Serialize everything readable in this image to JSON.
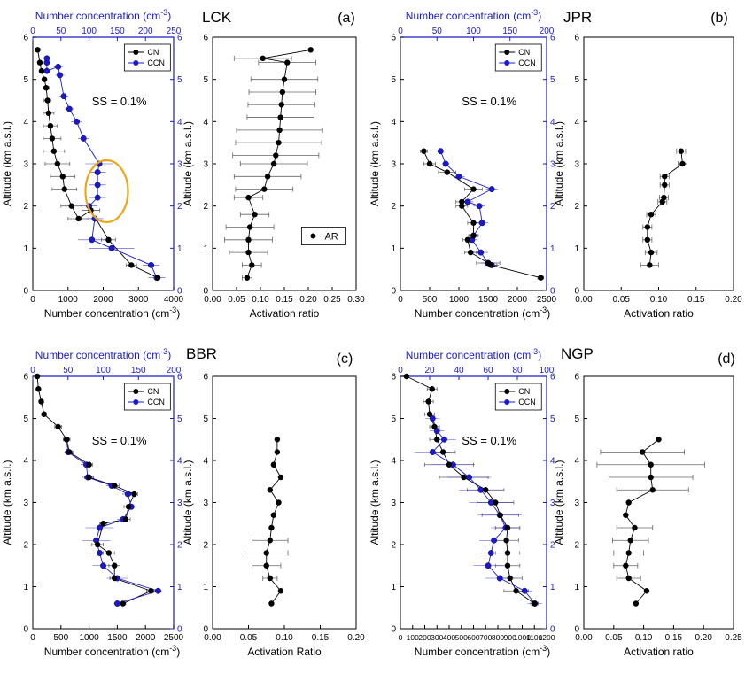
{
  "colors": {
    "cn": "#000000",
    "ccn": "#1a1acc",
    "axis_top": "#1a1acc",
    "ellipse": "#e8a817",
    "errbar": "#888888"
  },
  "common": {
    "ylabel": "Altitude (km a.s.l.)",
    "top_xlabel": "Number concentration (cm",
    "top_xlabel_sup": "-3",
    "top_xlabel_end": ")",
    "bottom_xlabel": "Number concentration (cm",
    "bottom_xlabel_sup": "-3",
    "bottom_xlabel_end": ")",
    "ss_text": "SS = 0.1%",
    "legend_cn": "CN",
    "legend_ccn": "CCN"
  },
  "chart_data": [
    {
      "panel": "(a)",
      "site": "LCK",
      "type": "scatter",
      "xlim": [
        0,
        4000
      ],
      "xticks": [
        "0",
        "1000",
        "2000",
        "3000",
        "4000"
      ],
      "top_xlim": [
        0,
        250
      ],
      "top_xticks": [
        "0",
        "50",
        "100",
        "150",
        "200",
        "250"
      ],
      "ylim": [
        0,
        6
      ],
      "yticks": [
        "0",
        "1",
        "2",
        "3",
        "4",
        "5",
        "6"
      ],
      "cn": [
        [
          3550,
          0.3
        ],
        [
          2800,
          0.6
        ],
        [
          2150,
          1.2
        ],
        [
          1650,
          1.9
        ],
        [
          1300,
          1.7
        ],
        [
          1100,
          2.0
        ],
        [
          900,
          2.4
        ],
        [
          850,
          2.7
        ],
        [
          700,
          3.0
        ],
        [
          600,
          3.3
        ],
        [
          550,
          3.6
        ],
        [
          500,
          3.9
        ],
        [
          450,
          4.2
        ],
        [
          420,
          4.5
        ],
        [
          380,
          4.8
        ],
        [
          330,
          5.0
        ],
        [
          250,
          5.2
        ],
        [
          200,
          5.4
        ],
        [
          140,
          5.7
        ]
      ],
      "cn_err": [
        50,
        150,
        200,
        250,
        300,
        300,
        350,
        350,
        350,
        300,
        250,
        200,
        150,
        100,
        80,
        60,
        50,
        40,
        30
      ],
      "ccn": [
        [
          220,
          0.3
        ],
        [
          210,
          0.6
        ],
        [
          140,
          1.0
        ],
        [
          105,
          1.2
        ],
        [
          110,
          1.7
        ],
        [
          100,
          2.0
        ],
        [
          115,
          2.2
        ],
        [
          115,
          2.5
        ],
        [
          115,
          2.8
        ],
        [
          118,
          3.0
        ],
        [
          90,
          3.6
        ],
        [
          78,
          4.0
        ],
        [
          65,
          4.3
        ],
        [
          55,
          4.6
        ],
        [
          48,
          5.1
        ],
        [
          45,
          5.3
        ],
        [
          25,
          5.2
        ],
        [
          25,
          5.4
        ],
        [
          25,
          5.5
        ]
      ],
      "ccn_err": [
        15,
        15,
        40,
        25,
        15,
        15,
        15,
        15,
        15,
        25,
        10,
        10,
        8,
        8,
        8,
        8,
        5,
        5,
        5
      ],
      "ar_xlim": [
        0,
        0.3
      ],
      "ar_xticks": [
        "0.00",
        "0.05",
        "0.10",
        "0.15",
        "0.20",
        "0.25",
        "0.30"
      ],
      "ar": [
        [
          0.072,
          0.3
        ],
        [
          0.082,
          0.6
        ],
        [
          0.075,
          0.9
        ],
        [
          0.075,
          1.2
        ],
        [
          0.078,
          1.5
        ],
        [
          0.088,
          1.8
        ],
        [
          0.075,
          2.2
        ],
        [
          0.108,
          2.4
        ],
        [
          0.115,
          2.7
        ],
        [
          0.128,
          3.0
        ],
        [
          0.132,
          3.2
        ],
        [
          0.138,
          3.5
        ],
        [
          0.14,
          3.8
        ],
        [
          0.142,
          4.1
        ],
        [
          0.144,
          4.4
        ],
        [
          0.146,
          4.7
        ],
        [
          0.15,
          5.0
        ],
        [
          0.156,
          5.4
        ],
        [
          0.105,
          5.5
        ],
        [
          0.205,
          5.7
        ]
      ],
      "ar_err": [
        0.01,
        0.02,
        0.04,
        0.05,
        0.05,
        0.03,
        0.03,
        0.06,
        0.07,
        0.07,
        0.09,
        0.09,
        0.09,
        0.07,
        0.07,
        0.07,
        0.07,
        0.06,
        0.06,
        0.0
      ],
      "ar_xlabel": "Activation ratio",
      "ar_legend": "AR",
      "ellipse": true
    },
    {
      "panel": "(b)",
      "site": "JPR",
      "type": "scatter",
      "xlim": [
        0,
        2500
      ],
      "xticks": [
        "0",
        "500",
        "1000",
        "1500",
        "2000",
        "2500"
      ],
      "top_xlim": [
        0,
        200
      ],
      "top_xticks": [
        "0",
        "50",
        "100",
        "150",
        "200"
      ],
      "ylim": [
        0,
        6
      ],
      "yticks": [
        "0",
        "1",
        "2",
        "3",
        "4",
        "5",
        "6"
      ],
      "cn": [
        [
          2400,
          0.3
        ],
        [
          1550,
          0.6
        ],
        [
          1500,
          0.65
        ],
        [
          1200,
          0.9
        ],
        [
          1150,
          1.2
        ],
        [
          1250,
          1.3
        ],
        [
          1250,
          1.6
        ],
        [
          1050,
          2.0
        ],
        [
          1050,
          2.1
        ],
        [
          1250,
          2.4
        ],
        [
          800,
          2.8
        ],
        [
          500,
          3.0
        ],
        [
          400,
          3.3
        ]
      ],
      "cn_err": [
        50,
        100,
        200,
        100,
        80,
        80,
        100,
        100,
        100,
        150,
        150,
        100,
        60
      ],
      "ccn": [
        [
          125,
          0.6
        ],
        [
          120,
          0.65
        ],
        [
          110,
          0.9
        ],
        [
          98,
          1.2
        ],
        [
          100,
          1.3
        ],
        [
          112,
          1.6
        ],
        [
          108,
          2.0
        ],
        [
          92,
          2.1
        ],
        [
          125,
          2.4
        ],
        [
          80,
          2.7
        ],
        [
          62,
          3.0
        ],
        [
          55,
          3.3
        ]
      ],
      "ccn_err": [
        10,
        10,
        10,
        8,
        8,
        8,
        8,
        8,
        8,
        8,
        5,
        5
      ],
      "ar_xlim": [
        0,
        0.2
      ],
      "ar_xticks": [
        "0.00",
        "0.05",
        "0.10",
        "0.15",
        "0.20"
      ],
      "ar": [
        [
          0.088,
          0.6
        ],
        [
          0.09,
          0.9
        ],
        [
          0.085,
          1.2
        ],
        [
          0.085,
          1.5
        ],
        [
          0.09,
          1.8
        ],
        [
          0.105,
          2.1
        ],
        [
          0.107,
          2.2
        ],
        [
          0.108,
          2.5
        ],
        [
          0.108,
          2.7
        ],
        [
          0.132,
          3.0
        ],
        [
          0.13,
          3.3
        ]
      ],
      "ar_err": [
        0.012,
        0.008,
        0.006,
        0.006,
        0.006,
        0.006,
        0.006,
        0.006,
        0.006,
        0.006,
        0.006
      ],
      "ar_xlabel": "Activation ratio",
      "ar_legend": "",
      "ellipse": false
    },
    {
      "panel": "(c)",
      "site": "BBR",
      "type": "scatter",
      "xlim": [
        0,
        2500
      ],
      "xticks": [
        "0",
        "500",
        "1000",
        "1500",
        "2000",
        "2500"
      ],
      "top_xlim": [
        0,
        200
      ],
      "top_xticks": [
        "0",
        "50",
        "100",
        "150",
        "200"
      ],
      "ylim": [
        0,
        6
      ],
      "yticks": [
        "0",
        "1",
        "2",
        "3",
        "4",
        "5",
        "6"
      ],
      "cn": [
        [
          1600,
          0.6
        ],
        [
          2100,
          0.9
        ],
        [
          1450,
          1.2
        ],
        [
          1450,
          1.5
        ],
        [
          1350,
          1.8
        ],
        [
          1150,
          2.0
        ],
        [
          1250,
          2.5
        ],
        [
          1650,
          2.6
        ],
        [
          1700,
          2.9
        ],
        [
          1800,
          3.2
        ],
        [
          1450,
          3.4
        ],
        [
          1000,
          3.6
        ],
        [
          1000,
          3.9
        ],
        [
          650,
          4.2
        ],
        [
          600,
          4.5
        ],
        [
          450,
          4.8
        ],
        [
          200,
          5.1
        ],
        [
          150,
          5.4
        ],
        [
          100,
          5.7
        ],
        [
          80,
          6.0
        ]
      ],
      "cn_err": [
        50,
        80,
        80,
        100,
        100,
        100,
        60,
        80,
        80,
        60,
        80,
        80,
        60,
        60,
        60,
        60,
        40,
        40,
        30,
        20
      ],
      "ccn": [
        [
          120,
          0.6
        ],
        [
          178,
          0.9
        ],
        [
          120,
          1.2
        ],
        [
          100,
          1.5
        ],
        [
          95,
          1.8
        ],
        [
          90,
          2.1
        ],
        [
          95,
          2.4
        ],
        [
          128,
          2.6
        ],
        [
          140,
          2.9
        ],
        [
          135,
          3.2
        ],
        [
          112,
          3.4
        ],
        [
          78,
          3.6
        ],
        [
          76,
          3.9
        ],
        [
          50,
          4.2
        ],
        [
          48,
          4.5
        ]
      ],
      "ccn_err": [
        5,
        5,
        15,
        15,
        20,
        20,
        20,
        8,
        8,
        8,
        8,
        8,
        8,
        5,
        5
      ],
      "ar_xlim": [
        0,
        0.2
      ],
      "ar_xticks": [
        "0.00",
        "0.05",
        "0.10",
        "0.15",
        "0.20"
      ],
      "ar": [
        [
          0.082,
          0.6
        ],
        [
          0.095,
          0.9
        ],
        [
          0.08,
          1.2
        ],
        [
          0.075,
          1.5
        ],
        [
          0.075,
          1.8
        ],
        [
          0.08,
          2.1
        ],
        [
          0.082,
          2.4
        ],
        [
          0.085,
          2.7
        ],
        [
          0.092,
          3.0
        ],
        [
          0.08,
          3.3
        ],
        [
          0.095,
          3.6
        ],
        [
          0.085,
          3.9
        ],
        [
          0.09,
          4.2
        ],
        [
          0.09,
          4.5
        ]
      ],
      "ar_err": [
        0.0,
        0.0,
        0.01,
        0.02,
        0.03,
        0.025,
        0.0,
        0.0,
        0.0,
        0.0,
        0.0,
        0.0,
        0.0,
        0.0
      ],
      "ar_xlabel": "Activation Ratio",
      "ar_legend": "",
      "ellipse": false
    },
    {
      "panel": "(d)",
      "site": "NGP",
      "type": "scatter",
      "xlim": [
        0,
        1200
      ],
      "xticks": [
        "0",
        "100",
        "200",
        "300",
        "400",
        "500",
        "600",
        "700",
        "800",
        "900",
        "1000",
        "1100",
        "1200"
      ],
      "top_xlim": [
        0,
        100
      ],
      "top_xticks": [
        "0",
        "20",
        "40",
        "60",
        "80",
        "100"
      ],
      "ylim": [
        0,
        6
      ],
      "yticks": [
        "0",
        "1",
        "2",
        "3",
        "4",
        "5",
        "6"
      ],
      "cn": [
        [
          1100,
          0.6
        ],
        [
          950,
          0.9
        ],
        [
          900,
          1.2
        ],
        [
          880,
          1.5
        ],
        [
          880,
          1.8
        ],
        [
          870,
          2.1
        ],
        [
          880,
          2.4
        ],
        [
          820,
          2.7
        ],
        [
          780,
          3.0
        ],
        [
          700,
          3.3
        ],
        [
          520,
          3.6
        ],
        [
          400,
          3.9
        ],
        [
          350,
          4.2
        ],
        [
          300,
          4.5
        ],
        [
          280,
          4.8
        ],
        [
          240,
          5.1
        ],
        [
          230,
          5.4
        ],
        [
          260,
          5.7
        ],
        [
          50,
          6.0
        ]
      ],
      "cn_err": [
        30,
        100,
        100,
        100,
        100,
        100,
        100,
        150,
        150,
        150,
        200,
        200,
        100,
        60,
        40,
        40,
        40,
        40,
        10
      ],
      "ccn": [
        [
          92,
          0.6
        ],
        [
          85,
          0.9
        ],
        [
          68,
          1.2
        ],
        [
          60,
          1.5
        ],
        [
          62,
          1.8
        ],
        [
          64,
          2.1
        ],
        [
          72,
          2.4
        ],
        [
          68,
          2.7
        ],
        [
          62,
          3.0
        ],
        [
          55,
          3.3
        ],
        [
          47,
          3.6
        ],
        [
          36,
          3.9
        ],
        [
          22,
          4.2
        ],
        [
          30,
          4.5
        ],
        [
          25,
          4.7
        ],
        [
          22,
          5.0
        ]
      ],
      "ccn_err": [
        5,
        5,
        10,
        10,
        10,
        10,
        10,
        15,
        15,
        15,
        15,
        15,
        12,
        8,
        5,
        5
      ],
      "ar_xlim": [
        0,
        0.25
      ],
      "ar_xticks": [
        "0.00",
        "0.05",
        "0.10",
        "0.15",
        "0.20",
        "0.25"
      ],
      "ar": [
        [
          0.087,
          0.6
        ],
        [
          0.105,
          0.9
        ],
        [
          0.075,
          1.2
        ],
        [
          0.07,
          1.5
        ],
        [
          0.075,
          1.8
        ],
        [
          0.078,
          2.1
        ],
        [
          0.085,
          2.4
        ],
        [
          0.07,
          2.7
        ],
        [
          0.075,
          3.0
        ],
        [
          0.115,
          3.3
        ],
        [
          0.112,
          3.6
        ],
        [
          0.112,
          3.9
        ],
        [
          0.098,
          4.2
        ],
        [
          0.125,
          4.5
        ]
      ],
      "ar_err": [
        0.0,
        0.0,
        0.02,
        0.02,
        0.025,
        0.03,
        0.03,
        0.0,
        0.0,
        0.06,
        0.07,
        0.09,
        0.07,
        0.0
      ],
      "ar_xlabel": "Activation ratio",
      "ar_legend": "",
      "ellipse": false
    }
  ]
}
